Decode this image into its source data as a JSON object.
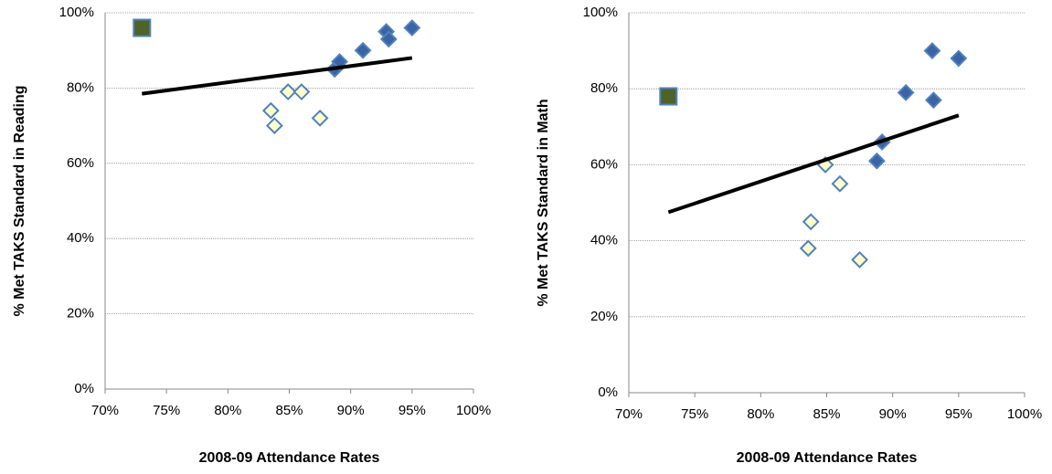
{
  "chart_data": [
    {
      "type": "scatter",
      "y_label": "% Met TAKS Standard in Reading",
      "x_label": "2008-09 Attendance Rates",
      "xlim": [
        70,
        100
      ],
      "xticks": [
        {
          "value": 70,
          "label": "70%"
        },
        {
          "value": 75,
          "label": "75%"
        },
        {
          "value": 80,
          "label": "80%"
        },
        {
          "value": 85,
          "label": "85%"
        },
        {
          "value": 90,
          "label": "90%"
        },
        {
          "value": 95,
          "label": "95%"
        },
        {
          "value": 100,
          "label": "100%"
        }
      ],
      "ylim": [
        0,
        100
      ],
      "yticks": [
        {
          "value": 0,
          "label": "0%"
        },
        {
          "value": 20,
          "label": "20%"
        },
        {
          "value": 40,
          "label": "40%"
        },
        {
          "value": 60,
          "label": "60%"
        },
        {
          "value": 80,
          "label": "80%"
        },
        {
          "value": 100,
          "label": "100%"
        }
      ],
      "grid": true,
      "series": [
        {
          "marker": "square",
          "color": "#4f6228",
          "edge": "#4f81bd",
          "x": [
            73
          ],
          "values": [
            96
          ]
        },
        {
          "marker": "diamond",
          "color": "#3a64a4",
          "edge": "#4f81bd",
          "x": [
            88.7,
            89.1,
            91,
            92.9,
            93.1,
            95
          ],
          "values": [
            85,
            87,
            90,
            95,
            93,
            96
          ]
        },
        {
          "marker": "diamond",
          "color": "#ffffcc",
          "edge": "#4f81bd",
          "x": [
            83.5,
            83.8,
            84.9,
            86,
            87.5
          ],
          "values": [
            74,
            70,
            79,
            79,
            72
          ]
        },
        {
          "marker": "line",
          "color": "#000000",
          "x": [
            73,
            95
          ],
          "values": [
            78.5,
            88
          ]
        }
      ]
    },
    {
      "type": "scatter",
      "y_label": "% Met TAKS Standard in Math",
      "x_label": "2008-09 Attendance Rates",
      "xlim": [
        70,
        100
      ],
      "xticks": [
        {
          "value": 70,
          "label": "70%"
        },
        {
          "value": 75,
          "label": "75%"
        },
        {
          "value": 80,
          "label": "80%"
        },
        {
          "value": 85,
          "label": "85%"
        },
        {
          "value": 90,
          "label": "90%"
        },
        {
          "value": 95,
          "label": "95%"
        },
        {
          "value": 100,
          "label": "100%"
        }
      ],
      "ylim": [
        0,
        100
      ],
      "yticks": [
        {
          "value": 0,
          "label": "0%"
        },
        {
          "value": 20,
          "label": "20%"
        },
        {
          "value": 40,
          "label": "40%"
        },
        {
          "value": 60,
          "label": "60%"
        },
        {
          "value": 80,
          "label": "80%"
        },
        {
          "value": 100,
          "label": "100%"
        }
      ],
      "grid": true,
      "series": [
        {
          "marker": "square",
          "color": "#4f6228",
          "edge": "#4f81bd",
          "x": [
            73
          ],
          "values": [
            78
          ]
        },
        {
          "marker": "diamond",
          "color": "#3a64a4",
          "edge": "#4f81bd",
          "x": [
            88.8,
            89.2,
            91,
            93,
            93.1,
            95
          ],
          "values": [
            61,
            66,
            79,
            90,
            77,
            88
          ]
        },
        {
          "marker": "diamond",
          "color": "#ffffcc",
          "edge": "#4f81bd",
          "x": [
            83.6,
            83.8,
            84.9,
            86,
            87.5
          ],
          "values": [
            38,
            45,
            60,
            55,
            35
          ]
        },
        {
          "marker": "line",
          "color": "#000000",
          "x": [
            73,
            95
          ],
          "values": [
            47.5,
            73
          ]
        }
      ]
    }
  ]
}
